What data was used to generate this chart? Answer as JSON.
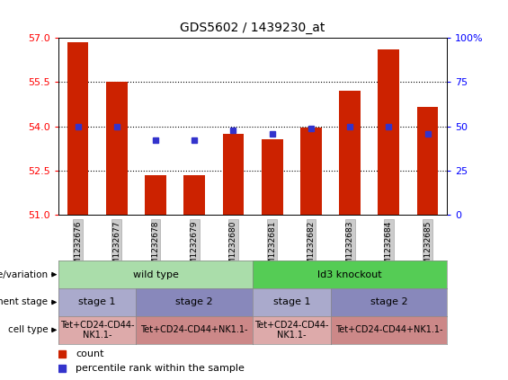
{
  "title": "GDS5602 / 1439230_at",
  "samples": [
    "GSM1232676",
    "GSM1232677",
    "GSM1232678",
    "GSM1232679",
    "GSM1232680",
    "GSM1232681",
    "GSM1232682",
    "GSM1232683",
    "GSM1232684",
    "GSM1232685"
  ],
  "bar_values": [
    56.85,
    55.5,
    52.35,
    52.35,
    53.75,
    53.55,
    53.95,
    55.2,
    56.6,
    54.65
  ],
  "percentile_values": [
    50,
    50,
    42,
    42,
    48,
    46,
    49,
    50,
    50,
    46
  ],
  "y_min": 51,
  "y_max": 57,
  "y_ticks": [
    51,
    52.5,
    54,
    55.5,
    57
  ],
  "right_y_ticks": [
    0,
    25,
    50,
    75,
    100
  ],
  "right_y_tick_labels": [
    "0",
    "25",
    "50",
    "75",
    "100%"
  ],
  "bar_color": "#CC2200",
  "dot_color": "#3333CC",
  "bg_color": "#FFFFFF",
  "sample_bg_color": "#DDDDDD",
  "genotype_row": {
    "label": "genotype/variation",
    "groups": [
      {
        "text": "wild type",
        "start": 0,
        "end": 4,
        "color": "#AADDAA"
      },
      {
        "text": "ld3 knockout",
        "start": 5,
        "end": 9,
        "color": "#55CC55"
      }
    ]
  },
  "stage_row": {
    "label": "development stage",
    "groups": [
      {
        "text": "stage 1",
        "start": 0,
        "end": 1,
        "color": "#AAAACC"
      },
      {
        "text": "stage 2",
        "start": 2,
        "end": 4,
        "color": "#8888BB"
      },
      {
        "text": "stage 1",
        "start": 5,
        "end": 6,
        "color": "#AAAACC"
      },
      {
        "text": "stage 2",
        "start": 7,
        "end": 9,
        "color": "#8888BB"
      }
    ]
  },
  "cell_row": {
    "label": "cell type",
    "groups": [
      {
        "text": "Tet+CD24-CD44-\nNK1.1-",
        "start": 0,
        "end": 1,
        "color": "#DDAAAA"
      },
      {
        "text": "Tet+CD24-CD44+NK1.1-",
        "start": 2,
        "end": 4,
        "color": "#CC8888"
      },
      {
        "text": "Tet+CD24-CD44-\nNK1.1-",
        "start": 5,
        "end": 6,
        "color": "#DDAAAA"
      },
      {
        "text": "Tet+CD24-CD44+NK1.1-",
        "start": 7,
        "end": 9,
        "color": "#CC8888"
      }
    ]
  },
  "legend_items": [
    {
      "label": "count",
      "color": "#CC2200"
    },
    {
      "label": "percentile rank within the sample",
      "color": "#3333CC"
    }
  ]
}
